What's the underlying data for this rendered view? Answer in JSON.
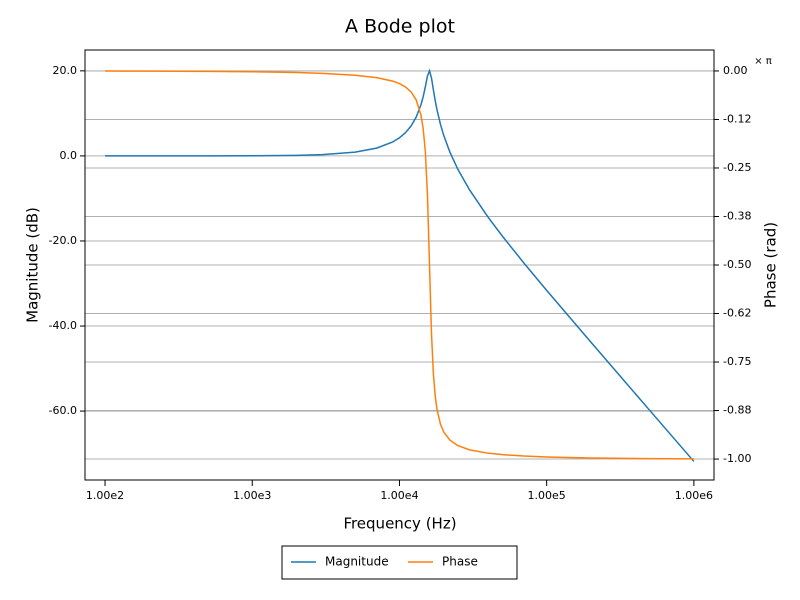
{
  "chart_data": {
    "type": "line",
    "title": "A Bode plot",
    "xlabel": "Frequency (Hz)",
    "ylabel": "Magnitude (dB)",
    "y2label": "Phase (rad)",
    "y2_unit": "× π",
    "xscale": "log",
    "grid": true,
    "legend": "bottom",
    "x": [
      100,
      200,
      500,
      1000,
      2000,
      3000,
      5000,
      7000,
      9000,
      10000,
      11000,
      12000,
      13000,
      14000,
      14500,
      15000,
      15500,
      16000,
      16500,
      17000,
      17500,
      18000,
      19000,
      20000,
      22000,
      25000,
      30000,
      40000,
      50000,
      70000,
      100000,
      200000,
      500000,
      1000000
    ],
    "series": [
      {
        "name": "Magnitude",
        "color": "#1f77b4",
        "axis": "y",
        "values": [
          0.0,
          0.001,
          0.009,
          0.034,
          0.136,
          0.309,
          0.887,
          1.833,
          3.275,
          4.257,
          5.485,
          7.055,
          9.133,
          12.035,
          13.963,
          16.298,
          18.804,
          20.0,
          18.337,
          15.543,
          12.968,
          10.798,
          7.391,
          4.788,
          0.904,
          -3.227,
          -8.037,
          -14.413,
          -18.861,
          -25.176,
          -31.611,
          -43.821,
          -59.786,
          -71.833
        ]
      },
      {
        "name": "Phase",
        "color": "#ff7f0e",
        "axis": "y2",
        "values": [
          -0.0002,
          -0.0004,
          -0.001,
          -0.002,
          -0.004,
          -0.0062,
          -0.011,
          -0.0172,
          -0.0261,
          -0.0325,
          -0.0413,
          -0.0541,
          -0.0747,
          -0.1137,
          -0.1494,
          -0.2097,
          -0.32,
          -0.5,
          -0.6756,
          -0.7805,
          -0.8382,
          -0.8725,
          -0.9103,
          -0.9304,
          -0.9512,
          -0.9656,
          -0.9763,
          -0.9849,
          -0.9887,
          -0.9923,
          -0.9948,
          -0.9974,
          -0.999,
          -0.9995
        ]
      }
    ],
    "xlim": [
      73.1,
      1370000
    ],
    "xticks": [
      {
        "value": 100,
        "label": "1.00e2"
      },
      {
        "value": 1000,
        "label": "1.00e3"
      },
      {
        "value": 10000,
        "label": "1.00e4"
      },
      {
        "value": 100000,
        "label": "1.00e5"
      },
      {
        "value": 1000000,
        "label": "1.00e6"
      }
    ],
    "ylim": [
      -76.2,
      24.9
    ],
    "yticks": [
      {
        "value": 20,
        "label": "20.0"
      },
      {
        "value": 0,
        "label": "0.0"
      },
      {
        "value": -20,
        "label": "-20.0"
      },
      {
        "value": -40,
        "label": "-40.0"
      },
      {
        "value": -60,
        "label": "-60.0"
      }
    ],
    "y2lim": [
      -1.054,
      0.054
    ],
    "y2ticks": [
      {
        "value": 0,
        "label": "0.00"
      },
      {
        "value": -0.125,
        "label": "-0.12"
      },
      {
        "value": -0.25,
        "label": "-0.25"
      },
      {
        "value": -0.375,
        "label": "-0.38"
      },
      {
        "value": -0.5,
        "label": "-0.50"
      },
      {
        "value": -0.625,
        "label": "-0.62"
      },
      {
        "value": -0.75,
        "label": "-0.75"
      },
      {
        "value": -0.875,
        "label": "-0.88"
      },
      {
        "value": -1,
        "label": "-1.00"
      }
    ]
  }
}
